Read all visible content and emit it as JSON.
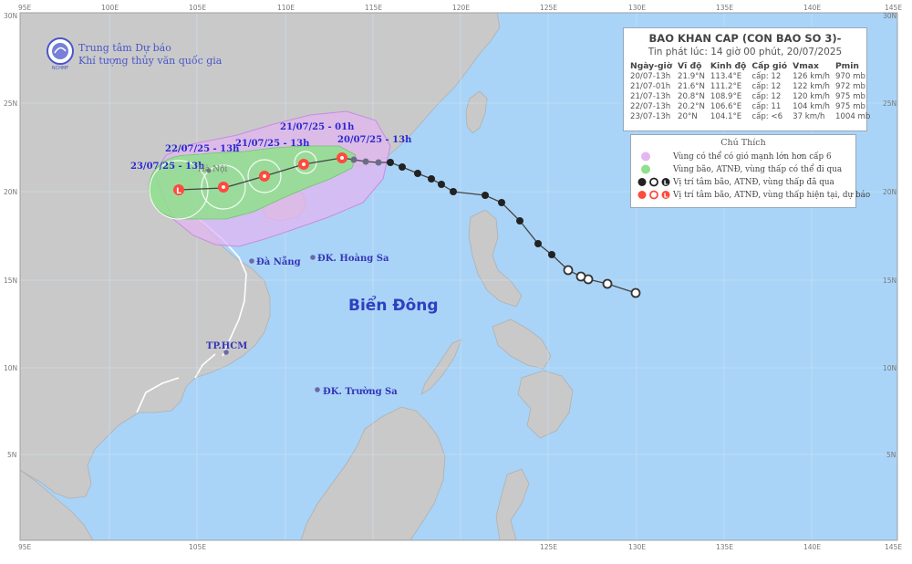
{
  "agency": {
    "name_line1": "Trung tâm Dự báo",
    "name_line2": "Khí tượng thủy văn quốc gia",
    "logo_text": "NCHMF"
  },
  "bulletin": {
    "title": "BAO KHAN CAP (CON BAO SO 3)-",
    "issued": "Tin phát lúc: 14 giờ 00 phút, 20/07/2025",
    "columns": [
      "Ngày-giờ",
      "Vĩ độ",
      "Kinh độ",
      "Cấp gió",
      "Vmax",
      "Pmin"
    ],
    "rows": [
      [
        "20/07-13h",
        "21.9°N",
        "113.4°E",
        "cấp: 12",
        "126 km/h",
        "970 mb"
      ],
      [
        "21/07-01h",
        "21.6°N",
        "111.2°E",
        "cấp: 12",
        "122 km/h",
        "972 mb"
      ],
      [
        "21/07-13h",
        "20.8°N",
        "108.9°E",
        "cấp: 12",
        "120 km/h",
        "975 mb"
      ],
      [
        "22/07-13h",
        "20.2°N",
        "106.6°E",
        "cấp: 11",
        "104 km/h",
        "975 mb"
      ],
      [
        "23/07-13h",
        "20°N",
        "104.1°E",
        "cấp: <6",
        "37 km/h",
        "1004 mb"
      ]
    ]
  },
  "legend": {
    "title": "Chú Thích",
    "items": [
      "Vùng có thể có gió mạnh lớn hơn cấp 6",
      "Vùng bão, ATNĐ, vùng thấp có thể đi qua",
      "Vị trí tâm bão, ATNĐ, vùng thấp đã qua",
      "Vị trí tâm bão, ATNĐ, vùng thấp hiện tại, dự báo"
    ],
    "colors": {
      "wind_zone": "#e3b6f0",
      "cone": "#8fe08c",
      "past": "#333333",
      "forecast": "#ff4a3d"
    }
  },
  "track_labels": [
    {
      "text": "20/07/25 - 13h"
    },
    {
      "text": "21/07/25 - 01h"
    },
    {
      "text": "21/07/25 - 13h"
    },
    {
      "text": "22/07/25 - 13h"
    },
    {
      "text": "23/07/25 - 13h"
    }
  ],
  "places": {
    "hanoi": "Hà Nội",
    "danang": "Đà Nẵng",
    "hoangsa": "ĐK. Hoàng Sa",
    "hcm": "TP.HCM",
    "truongsa": "ĐK. Trường Sa",
    "sea": "Biển Đông"
  },
  "axis": {
    "top": [
      "95E",
      "100E",
      "105E",
      "110E",
      "115E",
      "120E",
      "125E",
      "130E",
      "135E",
      "140E",
      "145E"
    ],
    "bottom": [
      "95E",
      "105E",
      "125E",
      "130E",
      "135E",
      "140E",
      "145E"
    ],
    "left": [
      "30N",
      "25N",
      "20N",
      "15N",
      "10N",
      "5N"
    ],
    "right": [
      "30N",
      "25N",
      "20N",
      "15N",
      "10N",
      "5N"
    ]
  }
}
